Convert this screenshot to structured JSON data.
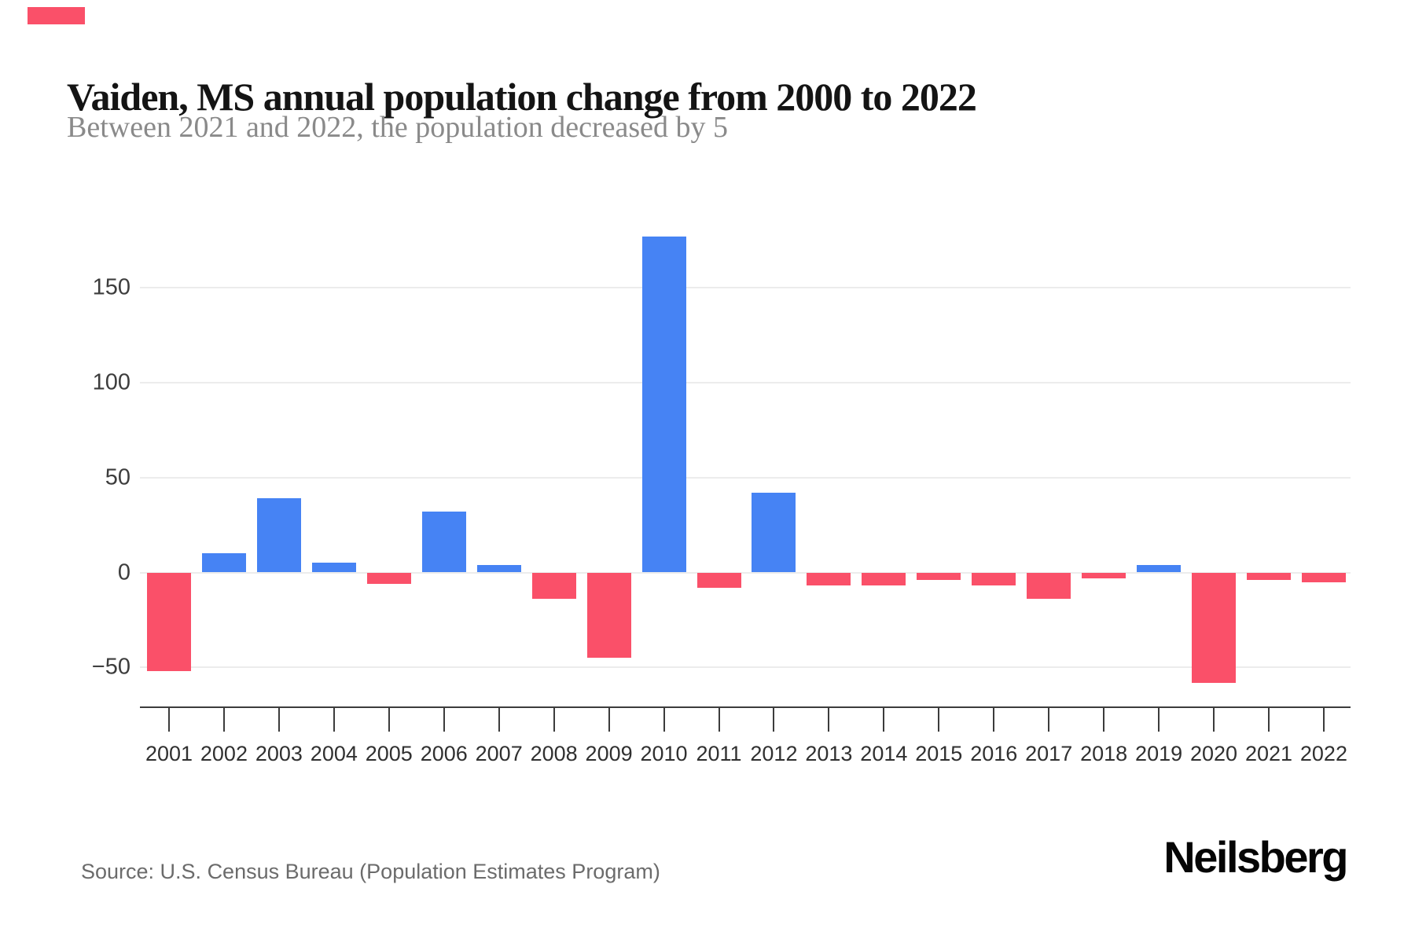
{
  "accent": {
    "color": "#FA5069"
  },
  "header": {
    "title": "Vaiden, MS annual population change from 2000 to 2022",
    "subtitle": "Between 2021 and 2022, the population decreased by 5"
  },
  "footer": {
    "source": "Source: U.S. Census Bureau (Population Estimates Program)",
    "logo": "Neilsberg"
  },
  "chart_data": {
    "type": "bar",
    "title": "Vaiden, MS annual population change from 2000 to 2022",
    "subtitle": "Between 2021 and 2022, the population decreased by 5",
    "xlabel": "",
    "ylabel": "",
    "categories": [
      "2001",
      "2002",
      "2003",
      "2004",
      "2005",
      "2006",
      "2007",
      "2008",
      "2009",
      "2010",
      "2011",
      "2012",
      "2013",
      "2014",
      "2015",
      "2016",
      "2017",
      "2018",
      "2019",
      "2020",
      "2021",
      "2022"
    ],
    "values": [
      -52,
      10,
      39,
      5,
      -6,
      32,
      4,
      -14,
      -45,
      177,
      -8,
      42,
      -7,
      -7,
      -4,
      -7,
      -14,
      -3,
      4,
      -58,
      -4,
      -5
    ],
    "yticks": [
      {
        "value": 150,
        "label": "150"
      },
      {
        "value": 100,
        "label": "100"
      },
      {
        "value": 50,
        "label": "50"
      },
      {
        "value": 0,
        "label": "0"
      },
      {
        "value": -50,
        "label": "−50"
      }
    ],
    "ylim": [
      -71,
      198
    ],
    "grid": true,
    "legend_position": "none",
    "bar_color_positive": "#4683F4",
    "bar_color_negative": "#FA5069",
    "grid_color": "#ECECEC",
    "axis_color": "#3C3C3C",
    "x_tick_label_color": "#303030",
    "y_tick_label_color": "#3D3D3D"
  }
}
